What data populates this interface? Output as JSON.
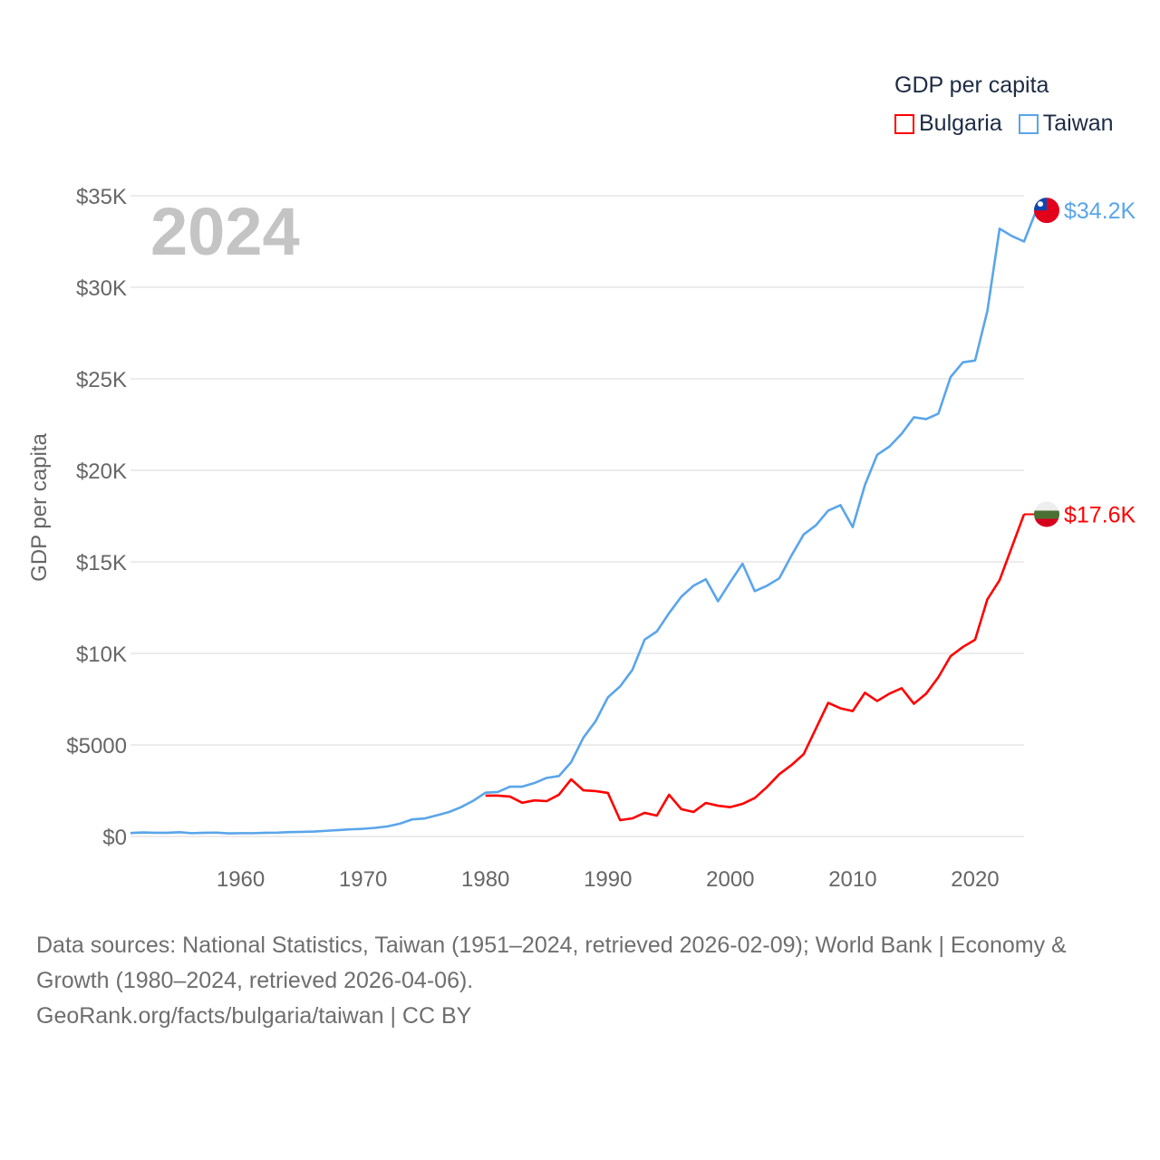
{
  "legend": {
    "title": "GDP per capita",
    "items": [
      {
        "name": "Bulgaria",
        "color": "#ff0000"
      },
      {
        "name": "Taiwan",
        "color": "#5aa5ea"
      }
    ]
  },
  "chart_data": {
    "type": "line",
    "title": "GDP per capita",
    "year_label": "2024",
    "xlabel": "",
    "ylabel": "GDP per capita",
    "xlim": [
      1951,
      2024
    ],
    "ylim": [
      0,
      35000
    ],
    "x_ticks": [
      1960,
      1970,
      1980,
      1990,
      2000,
      2010,
      2020
    ],
    "y_ticks": [
      {
        "value": 0,
        "label": "$0"
      },
      {
        "value": 5000,
        "label": "$5000"
      },
      {
        "value": 10000,
        "label": "$10K"
      },
      {
        "value": 15000,
        "label": "$15K"
      },
      {
        "value": 20000,
        "label": "$20K"
      },
      {
        "value": 25000,
        "label": "$25K"
      },
      {
        "value": 30000,
        "label": "$30K"
      },
      {
        "value": 35000,
        "label": "$35K"
      }
    ],
    "grid": true,
    "legend_position": "top-right",
    "series": [
      {
        "name": "Taiwan",
        "color": "#5aa5ea",
        "end_label": "$34.2K",
        "start_year": 1951,
        "values": [
          190,
          220,
          200,
          200,
          230,
          180,
          200,
          210,
          170,
          180,
          180,
          200,
          210,
          240,
          250,
          270,
          310,
          350,
          390,
          420,
          470,
          550,
          700,
          930,
          980,
          1150,
          1330,
          1600,
          1950,
          2390,
          2430,
          2720,
          2720,
          2920,
          3200,
          3300,
          4060,
          5400,
          6300,
          7600,
          8200,
          9100,
          10750,
          11200,
          12200,
          13100,
          13700,
          14050,
          12850,
          13900,
          14900,
          13400,
          13700,
          14100,
          15350,
          16500,
          17000,
          17800,
          18100,
          16900,
          19200,
          20850,
          21300,
          22000,
          22900,
          22800,
          23100,
          25100,
          25900,
          26000,
          28700,
          33200,
          32800,
          32500,
          34200
        ]
      },
      {
        "name": "Bulgaria",
        "color": "#ff0000",
        "end_label": "$17.6K",
        "start_year": 1980,
        "values": [
          2230,
          2230,
          2180,
          1840,
          1970,
          1930,
          2280,
          3120,
          2520,
          2480,
          2380,
          890,
          990,
          1290,
          1140,
          2280,
          1490,
          1340,
          1830,
          1680,
          1600,
          1780,
          2100,
          2700,
          3400,
          3900,
          4500,
          5900,
          7300,
          7000,
          6850,
          7850,
          7400,
          7800,
          8100,
          7250,
          7800,
          8700,
          9850,
          10350,
          10750,
          12950,
          14000,
          15800,
          17600
        ]
      }
    ]
  },
  "footer": {
    "sources": "Data sources: National Statistics, Taiwan (1951–2024, retrieved 2026-02-09); World Bank | Economy & Growth (1980–2024, retrieved 2026-04-06).",
    "credit": "GeoRank.org/facts/bulgaria/taiwan | CC BY"
  }
}
